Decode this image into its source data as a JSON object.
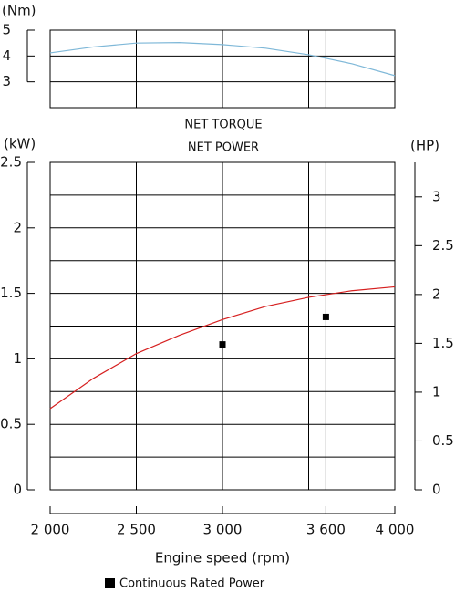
{
  "chart_data": [
    {
      "type": "line",
      "title": "NET TORQUE",
      "y_label": "(Nm)",
      "x": [
        2000,
        2250,
        2500,
        2750,
        3000,
        3250,
        3500,
        3750,
        4000
      ],
      "series": [
        {
          "color": "#7fb8d8",
          "values": [
            4.12,
            4.35,
            4.5,
            4.52,
            4.44,
            4.3,
            4.05,
            3.7,
            3.24
          ]
        }
      ],
      "xlim": [
        2000,
        4000
      ],
      "xgrid": [
        2500,
        3000,
        3500,
        3600
      ],
      "ylim": [
        2,
        5
      ],
      "yticks": [
        3,
        4,
        5
      ]
    },
    {
      "type": "line",
      "title": "NET POWER",
      "y_label": "(kW)",
      "y2_label": "(HP)",
      "x_label": "Engine speed (rpm)",
      "series": [
        {
          "color": "#d62020",
          "x": [
            2000,
            2250,
            2500,
            2750,
            3000,
            3250,
            3500,
            3750,
            4000
          ],
          "values": [
            0.62,
            0.85,
            1.04,
            1.18,
            1.3,
            1.4,
            1.47,
            1.52,
            1.55
          ]
        },
        {
          "name": "Continuous Rated Power",
          "type": "scatter",
          "color": "#000000",
          "x": [
            3000,
            3600
          ],
          "values": [
            1.11,
            1.32
          ]
        }
      ],
      "xlim": [
        2000,
        4000
      ],
      "xticks": [
        {
          "value": 2000,
          "label": "2 000"
        },
        {
          "value": 2500,
          "label": "2 500"
        },
        {
          "value": 3000,
          "label": "3 000"
        },
        {
          "value": 3600,
          "label": "3 600"
        },
        {
          "value": 4000,
          "label": "4 000"
        }
      ],
      "xgrid": [
        2500,
        3000,
        3500,
        3600
      ],
      "ylim": [
        0,
        2.5
      ],
      "yticks": [
        0,
        0.5,
        1,
        1.5,
        2,
        2.5
      ],
      "ygrid": [
        0.25,
        0.5,
        0.75,
        1,
        1.25,
        1.5,
        1.75,
        2,
        2.25
      ],
      "y2lim": [
        0,
        3.353
      ],
      "y2ticks": [
        0,
        0.5,
        1,
        1.5,
        2,
        2.5,
        3
      ]
    }
  ]
}
